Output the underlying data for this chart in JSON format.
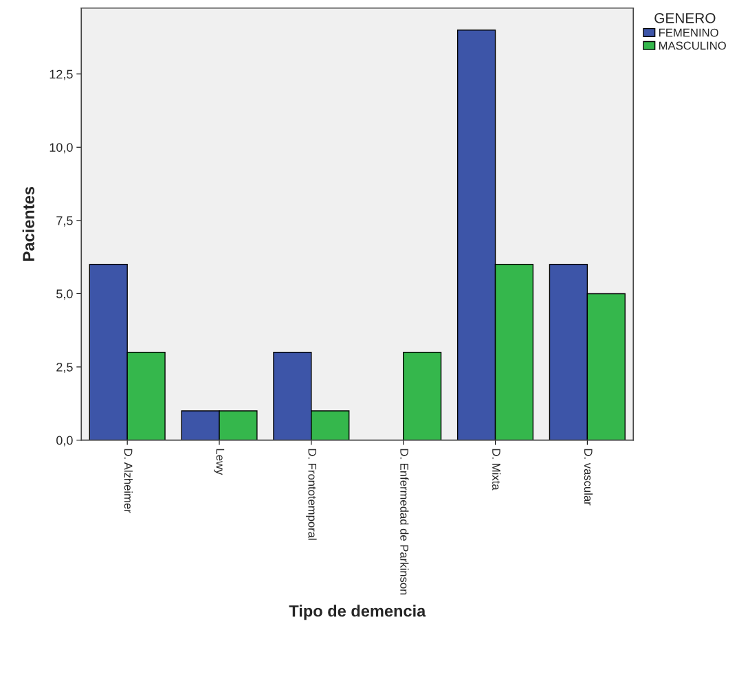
{
  "chart_data": {
    "type": "bar",
    "xlabel": "Tipo de demencia",
    "ylabel": "Pacientes",
    "legend_title": "GENERO",
    "categories": [
      "D. Alzheimer",
      "Lewy",
      "D. Frontotemporal",
      "D. Enfermedad de Parkinson",
      "D. Mixta",
      "D. vascular"
    ],
    "series": [
      {
        "name": "FEMENINO",
        "color": "#3d55a8",
        "values": [
          6,
          1,
          3,
          0,
          14,
          6
        ]
      },
      {
        "name": "MASCULINO",
        "color": "#35b74c",
        "values": [
          3,
          1,
          1,
          3,
          6,
          5
        ]
      }
    ],
    "ylim": [
      0,
      14.75
    ],
    "yticks": [
      {
        "value": 0,
        "label": "0,0"
      },
      {
        "value": 2.5,
        "label": "2,5"
      },
      {
        "value": 5,
        "label": "5,0"
      },
      {
        "value": 7.5,
        "label": "7,5"
      },
      {
        "value": 10,
        "label": "10,0"
      },
      {
        "value": 12.5,
        "label": "12,5"
      }
    ],
    "grid": false,
    "legend": "top right"
  }
}
